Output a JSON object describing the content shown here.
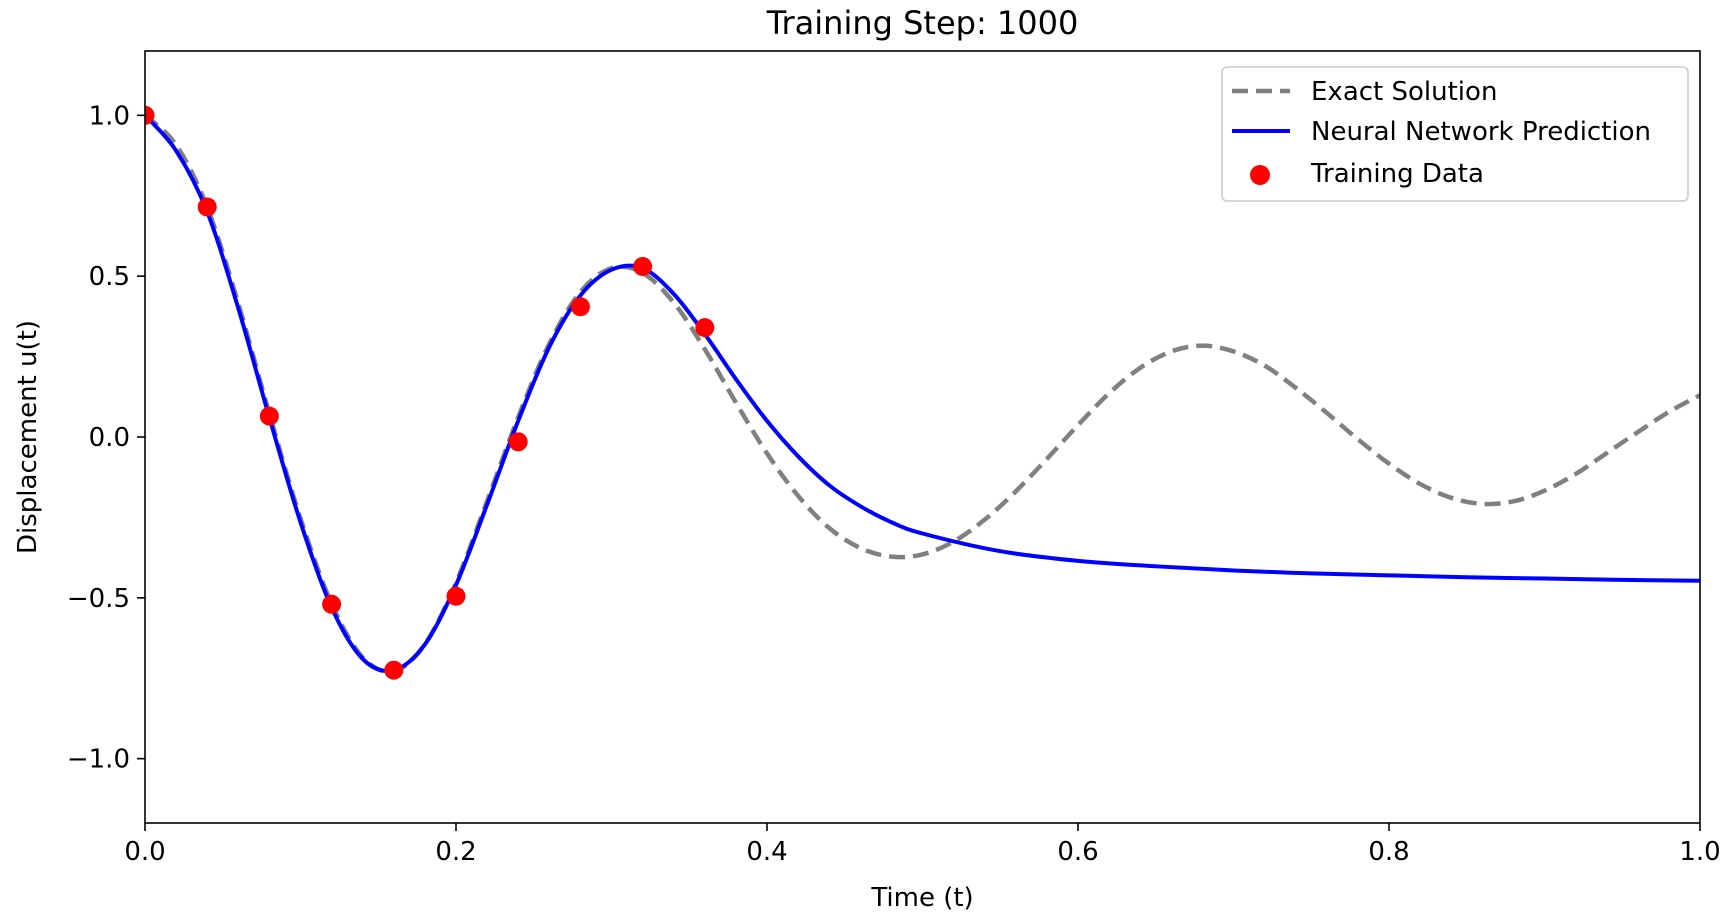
{
  "chart_data": {
    "type": "line",
    "title": "Training Step: 1000",
    "xlabel": "Time (t)",
    "ylabel": "Displacement u(t)",
    "xlim": [
      0.0,
      1.0
    ],
    "ylim": [
      -1.2,
      1.2
    ],
    "xticks": [
      0.0,
      0.2,
      0.4,
      0.6,
      0.8,
      1.0
    ],
    "xtick_labels": [
      "0.0",
      "0.2",
      "0.4",
      "0.6",
      "0.8",
      "1.0"
    ],
    "yticks": [
      -1.0,
      -0.5,
      0.0,
      0.5,
      1.0
    ],
    "ytick_labels": [
      "−1.0",
      "−0.5",
      "0.0",
      "0.5",
      "1.0"
    ],
    "grid": false,
    "legend_position": "top-right",
    "series": [
      {
        "name": "Exact Solution",
        "style": "dashed",
        "color": "#808080",
        "x": [
          0.0,
          0.02,
          0.04,
          0.06,
          0.08,
          0.1,
          0.12,
          0.14,
          0.16,
          0.18,
          0.2,
          0.22,
          0.24,
          0.26,
          0.28,
          0.3,
          0.32,
          0.34,
          0.36,
          0.38,
          0.4,
          0.42,
          0.44,
          0.46,
          0.48,
          0.5,
          0.52,
          0.54,
          0.56,
          0.58,
          0.6,
          0.62,
          0.64,
          0.66,
          0.68,
          0.7,
          0.72,
          0.74,
          0.76,
          0.78,
          0.8,
          0.82,
          0.84,
          0.86,
          0.88,
          0.9,
          0.92,
          0.94,
          0.96,
          0.98,
          1.0
        ],
        "y": [
          1.0,
          0.908,
          0.714,
          0.415,
          0.072,
          -0.253,
          -0.518,
          -0.685,
          -0.728,
          -0.644,
          -0.453,
          -0.199,
          0.062,
          0.29,
          0.451,
          0.525,
          0.51,
          0.418,
          0.273,
          0.107,
          -0.051,
          -0.183,
          -0.283,
          -0.345,
          -0.372,
          -0.365,
          -0.325,
          -0.257,
          -0.169,
          -0.068,
          0.037,
          0.136,
          0.215,
          0.266,
          0.284,
          0.266,
          0.222,
          0.153,
          0.075,
          -0.007,
          -0.083,
          -0.146,
          -0.189,
          -0.208,
          -0.2,
          -0.167,
          -0.115,
          -0.05,
          0.015,
          0.078,
          0.13
        ]
      },
      {
        "name": "Neural Network Prediction",
        "style": "solid",
        "color": "#0000ff",
        "x": [
          0.0,
          0.02,
          0.04,
          0.06,
          0.08,
          0.1,
          0.12,
          0.14,
          0.16,
          0.18,
          0.2,
          0.22,
          0.24,
          0.26,
          0.28,
          0.3,
          0.32,
          0.34,
          0.36,
          0.38,
          0.4,
          0.42,
          0.44,
          0.46,
          0.48,
          0.5,
          0.55,
          0.6,
          0.65,
          0.7,
          0.75,
          0.8,
          0.85,
          0.9,
          0.95,
          1.0
        ],
        "y": [
          1.0,
          0.89,
          0.7,
          0.4,
          0.06,
          -0.265,
          -0.53,
          -0.69,
          -0.725,
          -0.645,
          -0.46,
          -0.21,
          0.05,
          0.28,
          0.44,
          0.52,
          0.525,
          0.445,
          0.32,
          0.18,
          0.05,
          -0.06,
          -0.15,
          -0.215,
          -0.265,
          -0.3,
          -0.355,
          -0.385,
          -0.402,
          -0.415,
          -0.424,
          -0.43,
          -0.436,
          -0.44,
          -0.444,
          -0.447
        ]
      },
      {
        "name": "Training Data",
        "style": "scatter",
        "color": "#ff0000",
        "x": [
          0.0,
          0.04,
          0.08,
          0.12,
          0.16,
          0.2,
          0.24,
          0.28,
          0.32,
          0.36
        ],
        "y": [
          1.0,
          0.715,
          0.065,
          -0.52,
          -0.725,
          -0.495,
          -0.015,
          0.405,
          0.53,
          0.34
        ]
      }
    ]
  }
}
